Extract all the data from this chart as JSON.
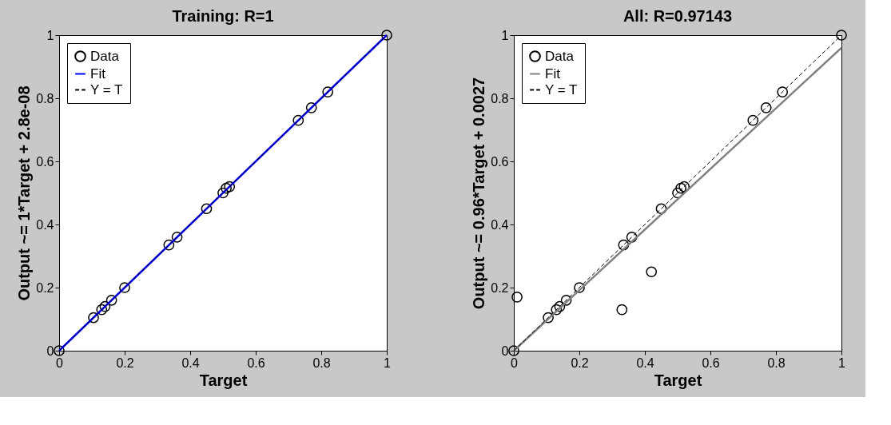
{
  "chart_data": [
    {
      "type": "scatter",
      "title": "Training: R=1",
      "xlabel": "Target",
      "ylabel": "Output ~= 1*Target + 2.8e-08",
      "xlim": [
        0,
        1
      ],
      "ylim": [
        0,
        1
      ],
      "xticks": [
        0,
        0.2,
        0.4,
        0.6,
        0.8,
        1
      ],
      "yticks": [
        0,
        0.2,
        0.4,
        0.6,
        0.8,
        1
      ],
      "grid": false,
      "legend": "top left",
      "series": [
        {
          "name": "Data",
          "marker": "circle",
          "color": "#000000",
          "x": [
            0,
            0.105,
            0.13,
            0.14,
            0.16,
            0.2,
            0.335,
            0.36,
            0.45,
            0.5,
            0.51,
            0.52,
            0.73,
            0.77,
            0.82,
            1
          ],
          "values": [
            0,
            0.105,
            0.13,
            0.14,
            0.16,
            0.2,
            0.335,
            0.36,
            0.45,
            0.5,
            0.515,
            0.52,
            0.73,
            0.77,
            0.82,
            1
          ]
        },
        {
          "name": "Fit",
          "type": "line",
          "line_style": "solid",
          "color": "#0000ff",
          "x": [
            0,
            1
          ],
          "values": [
            0,
            1
          ]
        },
        {
          "name": "Y = T",
          "type": "line",
          "line_style": "dashed",
          "color": "#000000",
          "x": [
            0,
            1
          ],
          "values": [
            0,
            1
          ]
        }
      ]
    },
    {
      "type": "scatter",
      "title": "All: R=0.97143",
      "xlabel": "Target",
      "ylabel": "Output ~= 0.96*Target + 0.0027",
      "xlim": [
        0,
        1
      ],
      "ylim": [
        0,
        1
      ],
      "xticks": [
        0,
        0.2,
        0.4,
        0.6,
        0.8,
        1
      ],
      "yticks": [
        0,
        0.2,
        0.4,
        0.6,
        0.8,
        1
      ],
      "grid": false,
      "legend": "top left",
      "series": [
        {
          "name": "Data",
          "marker": "circle",
          "color": "#000000",
          "x": [
            0,
            0.01,
            0.105,
            0.13,
            0.14,
            0.16,
            0.2,
            0.33,
            0.335,
            0.36,
            0.42,
            0.45,
            0.5,
            0.51,
            0.52,
            0.73,
            0.77,
            0.82,
            1
          ],
          "values": [
            0,
            0.17,
            0.105,
            0.13,
            0.14,
            0.16,
            0.2,
            0.13,
            0.335,
            0.36,
            0.25,
            0.45,
            0.5,
            0.515,
            0.52,
            0.73,
            0.77,
            0.82,
            1
          ]
        },
        {
          "name": "Fit",
          "type": "line",
          "line_style": "solid",
          "color": "#808080",
          "x": [
            0,
            1
          ],
          "values": [
            0,
            0.96
          ]
        },
        {
          "name": "Y = T",
          "type": "line",
          "line_style": "dashed",
          "color": "#000000",
          "x": [
            0,
            1
          ],
          "values": [
            0,
            1
          ]
        }
      ]
    }
  ]
}
